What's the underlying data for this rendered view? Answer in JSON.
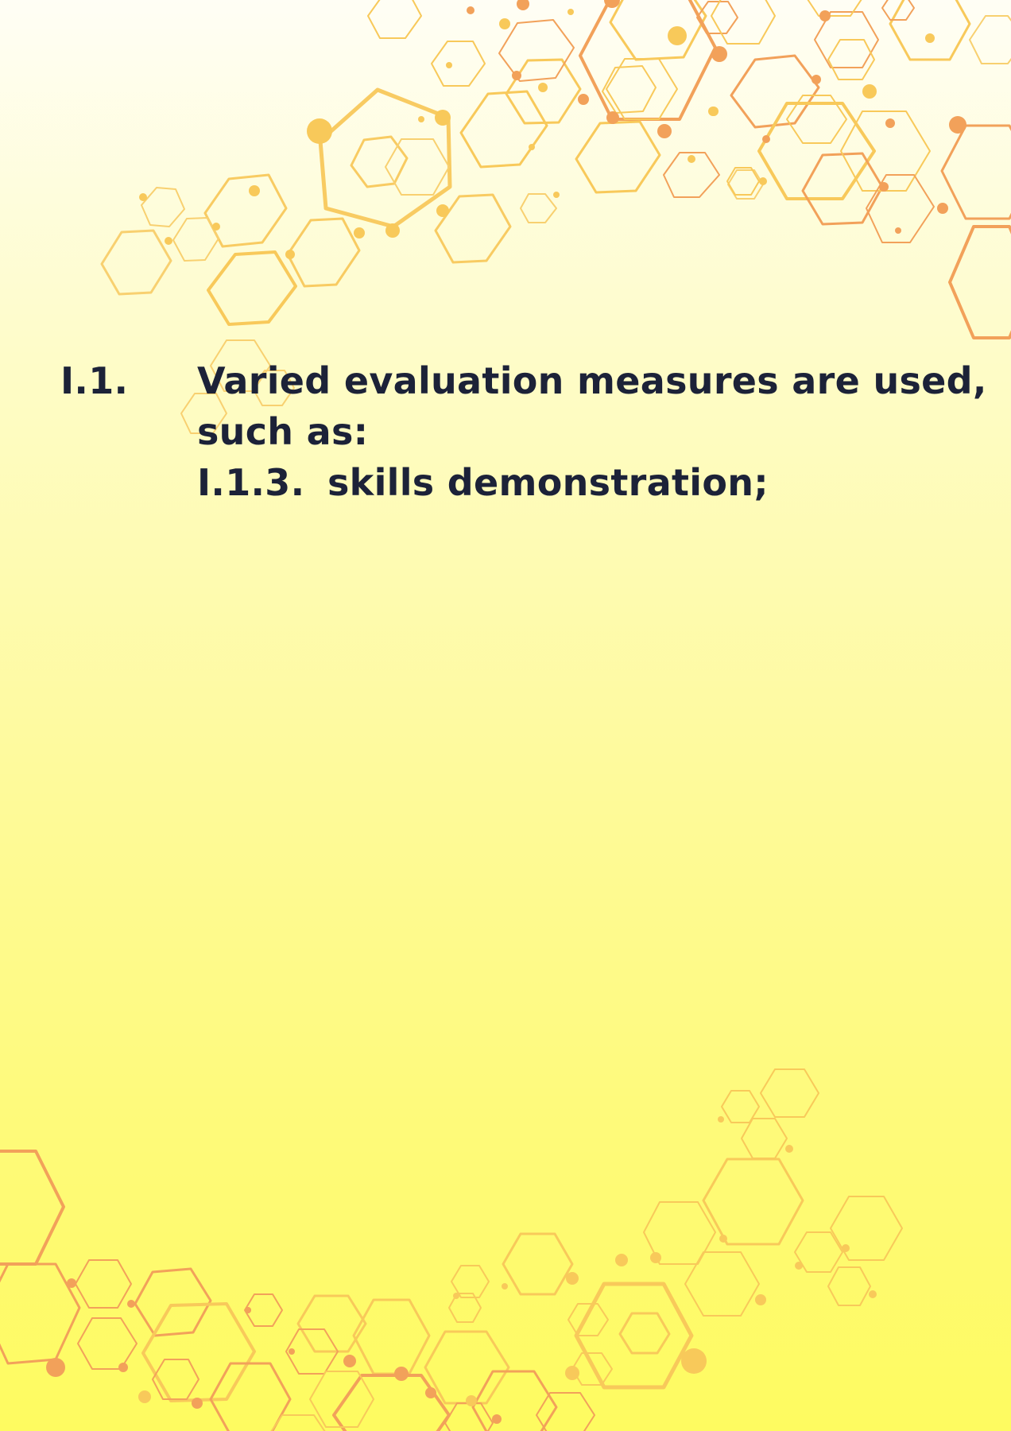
{
  "content": {
    "item": {
      "number": "I.1.",
      "text_line1": "Varied evaluation measures are used,",
      "text_line2": "such as:"
    },
    "subitem": {
      "number": "I.1.3.",
      "text": "skills demonstration;"
    }
  },
  "colors": {
    "background_top": "#fffef5",
    "background_bottom": "#fefb60",
    "text": "#1c2238",
    "hexagon_light": "#f8c95a",
    "hexagon_orange": "#f2a15a"
  }
}
